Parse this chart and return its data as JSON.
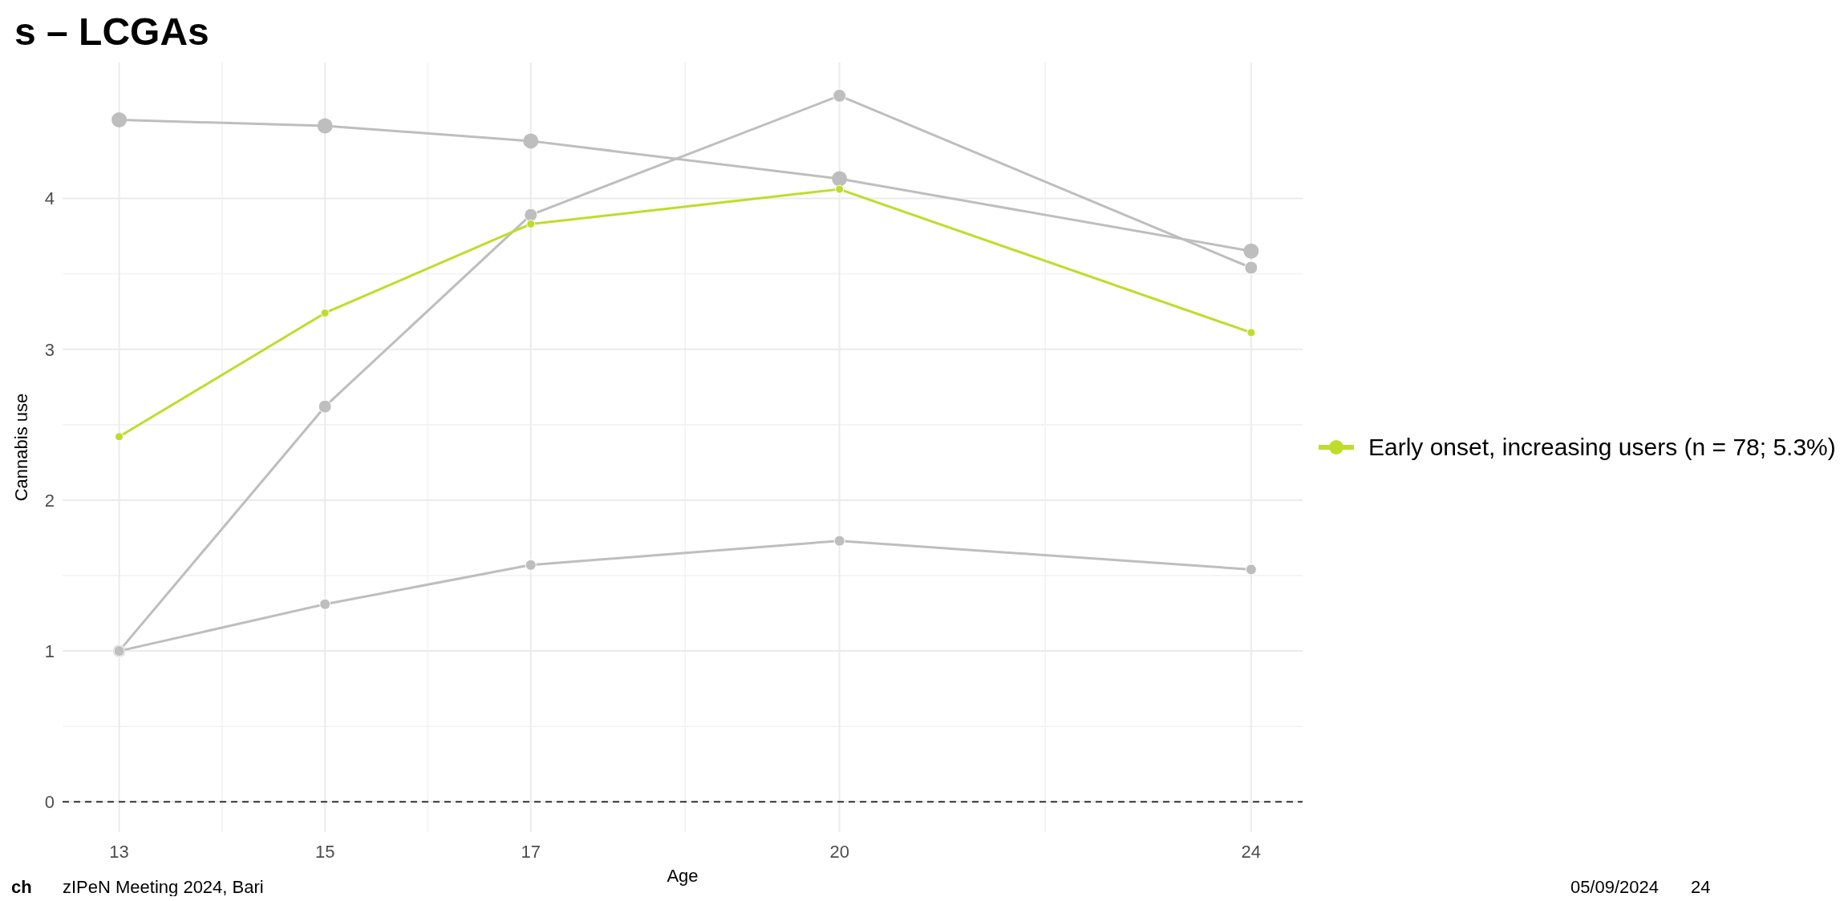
{
  "chart_data": {
    "type": "line",
    "title": "s – LCGAs",
    "xlabel": "Age",
    "ylabel": "Cannabis use",
    "x": [
      13,
      15,
      17,
      20,
      24
    ],
    "series": [
      {
        "color": "#bebebe",
        "values": [
          4.52,
          4.48,
          4.38,
          4.13,
          3.65
        ]
      },
      {
        "color": "#bebebe",
        "values": [
          1.0,
          2.62,
          3.89,
          4.68,
          3.54
        ]
      },
      {
        "color": "#bebebe",
        "values": [
          1.0,
          1.31,
          1.57,
          1.73,
          1.54
        ]
      },
      {
        "name": "Early onset, increasing users (n = 78; 5.3%)",
        "color": "#c0dc2a",
        "values": [
          2.42,
          3.24,
          3.83,
          4.06,
          3.11
        ]
      }
    ],
    "xlim": [
      12.45,
      24.5
    ],
    "ylim": [
      -0.2,
      4.9
    ],
    "xticks": [
      13,
      15,
      17,
      20,
      24
    ],
    "yticks": [
      0,
      1,
      2,
      3,
      4
    ],
    "grid": true,
    "legend": "right",
    "marker": "circle",
    "line_style": "solid",
    "ref_lines": [
      {
        "axis": "y",
        "value": 0,
        "color": "#333333",
        "line_style": "dashed"
      }
    ],
    "annotations": [
      "ch",
      "zIPeN Meeting 2024, Bari",
      "05/09/2024",
      "24"
    ]
  }
}
